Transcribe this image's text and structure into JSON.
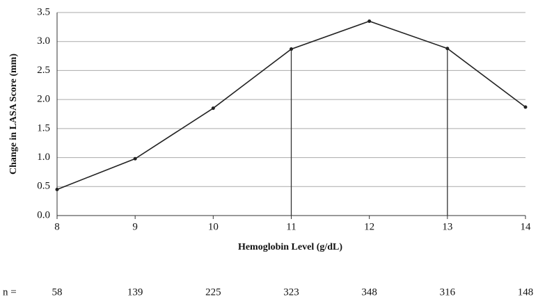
{
  "chart_data": {
    "type": "line",
    "x_label": "Hemoglobin Level (g/dL)",
    "y_label": "Change in LASA Score (mm)",
    "x": [
      8,
      9,
      10,
      11,
      12,
      13,
      14
    ],
    "series": [
      {
        "color": "#222222",
        "values": [
          0.45,
          0.98,
          1.85,
          2.87,
          3.35,
          2.88,
          1.87
        ]
      }
    ],
    "vlines": [
      11,
      13
    ],
    "xlim": [
      8,
      14
    ],
    "xticks": [
      8,
      9,
      10,
      11,
      12,
      13,
      14
    ],
    "ylim": [
      0,
      3.5
    ],
    "yticks": [
      {
        "value": 0,
        "label": "0.0"
      },
      0.5,
      {
        "value": 1,
        "label": "1.0"
      },
      1.5,
      {
        "value": 2,
        "label": "2.0"
      },
      2.5,
      {
        "value": 3,
        "label": "3.0"
      },
      3.5
    ],
    "grid": true,
    "n_label": "n =",
    "n_values": [
      58,
      139,
      225,
      323,
      348,
      316,
      148
    ]
  }
}
